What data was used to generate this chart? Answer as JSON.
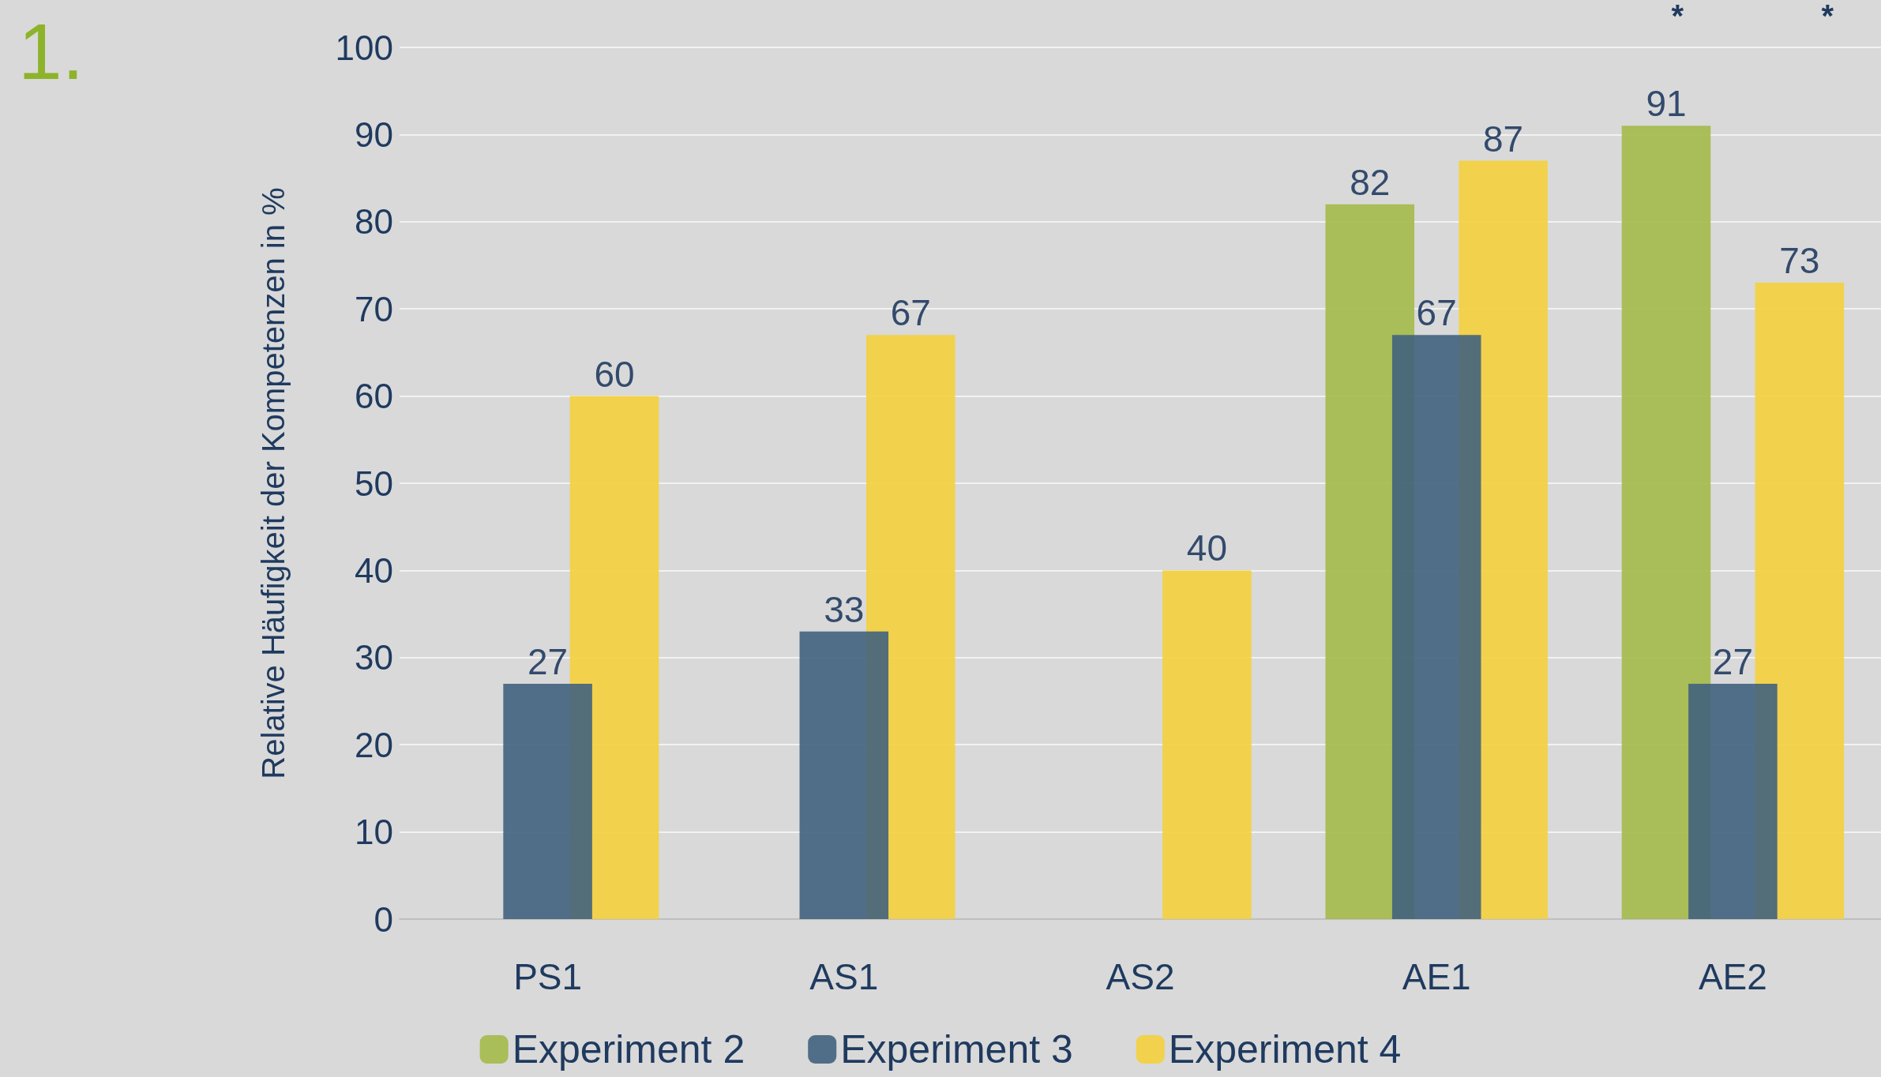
{
  "chart_data": {
    "type": "bar",
    "title": "1.",
    "ylabel": "Relative Häufigkeit der Kompetenzen in %",
    "categories": [
      "PS1",
      "AS1",
      "AS2",
      "AE1",
      "AE2"
    ],
    "series": [
      {
        "name": "Experiment 2",
        "color": "#a3b949",
        "values": [
          null,
          null,
          null,
          82,
          91
        ]
      },
      {
        "name": "Experiment 3",
        "color": "#41627e",
        "values": [
          27,
          33,
          null,
          67,
          27
        ]
      },
      {
        "name": "Experiment 4",
        "color": "#f4cf3c",
        "values": [
          60,
          67,
          40,
          87,
          73
        ]
      }
    ],
    "ylim": [
      0,
      100
    ],
    "yticks": [
      0,
      10,
      20,
      30,
      40,
      50,
      60,
      70,
      80,
      90,
      100
    ],
    "grid": "y",
    "legend": "bottom",
    "data_labels": true,
    "annotations": [
      "*",
      "*"
    ]
  }
}
